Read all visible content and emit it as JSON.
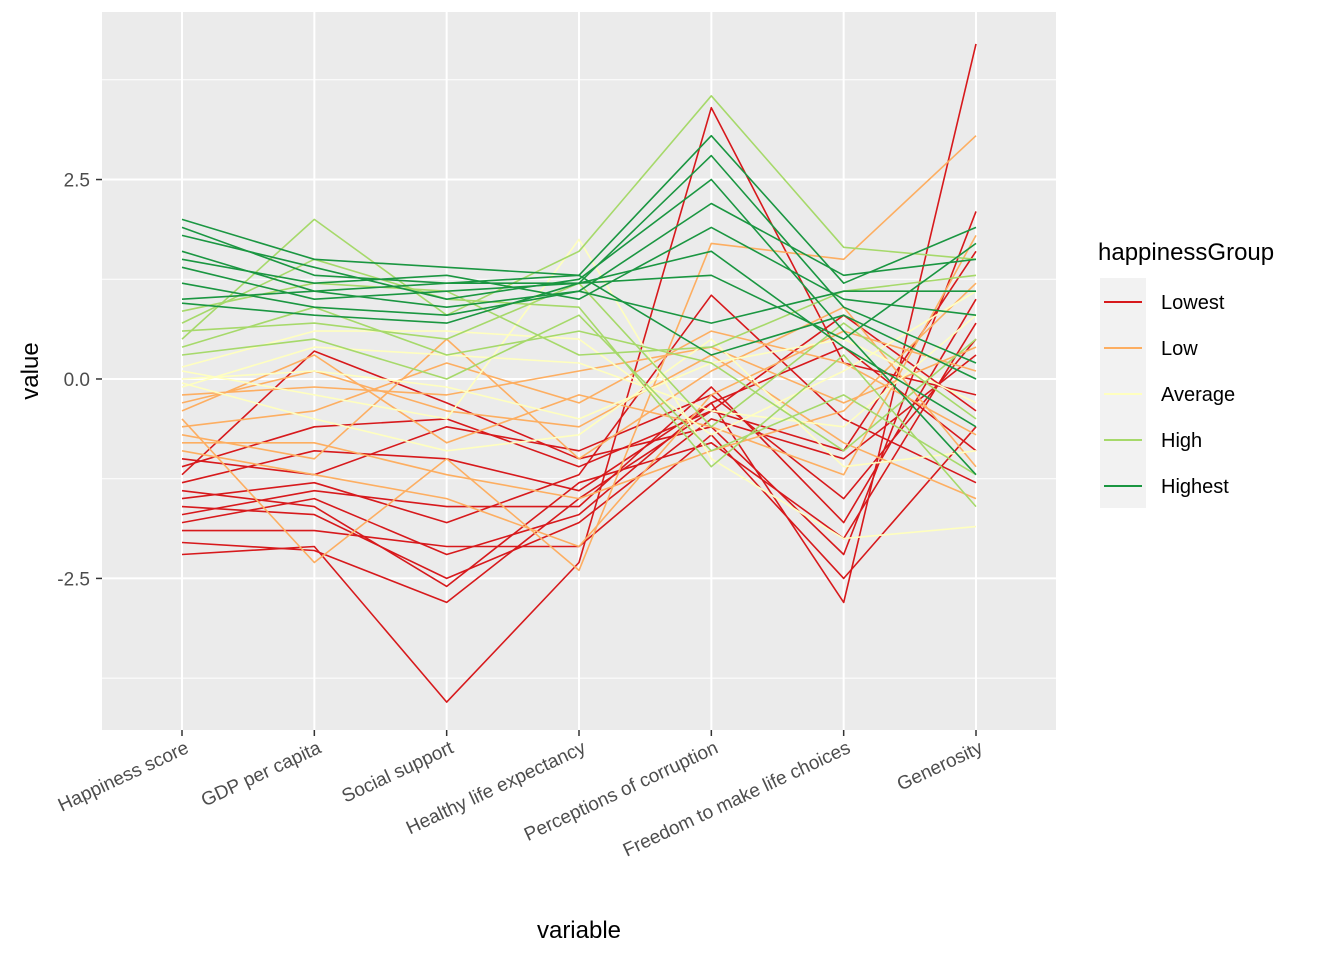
{
  "chart_data": {
    "type": "line",
    "subtype": "parallel-coordinates",
    "xlabel": "variable",
    "ylabel": "value",
    "categories": [
      "Happiness score",
      "GDP per capita",
      "Social support",
      "Healthy life expectancy",
      "Perceptions of corruption",
      "Freedom to make life choices",
      "Generosity"
    ],
    "ylim": [
      -4.4,
      4.6
    ],
    "yticks": [
      -2.5,
      0.0,
      2.5
    ],
    "ytick_labels": [
      "-2.5",
      "0.0",
      "2.5"
    ],
    "grid": true,
    "legend": {
      "title": "happinessGroup",
      "position": "right",
      "entries": [
        "Lowest",
        "Low",
        "Average",
        "High",
        "Highest"
      ]
    },
    "colors": {
      "Lowest": "#d7191c",
      "Low": "#fdae61",
      "Average": "#ffffbf",
      "High": "#a6d96a",
      "Highest": "#1a9641",
      "panel": "#ebebeb",
      "grid": "#ffffff"
    },
    "series": [
      {
        "group": "Lowest",
        "values": [
          -2.05,
          -2.15,
          -2.8,
          -1.5,
          -0.4,
          -0.9,
          1.6
        ]
      },
      {
        "group": "Lowest",
        "values": [
          -2.2,
          -2.1,
          -4.05,
          -2.3,
          3.4,
          0.2,
          -0.2
        ]
      },
      {
        "group": "Lowest",
        "values": [
          -1.8,
          -1.5,
          -2.2,
          -1.7,
          -0.3,
          -2.8,
          4.2
        ]
      },
      {
        "group": "Lowest",
        "values": [
          -1.5,
          -1.3,
          -1.8,
          -1.2,
          1.05,
          -0.5,
          -1.3
        ]
      },
      {
        "group": "Lowest",
        "values": [
          -1.2,
          0.35,
          -0.3,
          -1.0,
          -0.6,
          -2.2,
          2.1
        ]
      },
      {
        "group": "Lowest",
        "values": [
          -1.6,
          -1.7,
          -2.5,
          -1.8,
          -0.5,
          -1.0,
          0.3
        ]
      },
      {
        "group": "Lowest",
        "values": [
          -1.0,
          -1.2,
          -0.6,
          -0.9,
          -0.2,
          -1.5,
          0.5
        ]
      },
      {
        "group": "Lowest",
        "values": [
          -1.9,
          -1.9,
          -2.1,
          -2.1,
          -0.7,
          -2.5,
          -0.6
        ]
      },
      {
        "group": "Lowest",
        "values": [
          -1.3,
          -0.9,
          -1.0,
          -1.4,
          -0.3,
          0.4,
          -0.9
        ]
      },
      {
        "group": "Lowest",
        "values": [
          -1.7,
          -1.4,
          -1.6,
          -1.6,
          -0.1,
          -1.8,
          1.0
        ]
      },
      {
        "group": "Lowest",
        "values": [
          -1.1,
          -0.6,
          -0.5,
          -1.1,
          -0.4,
          0.8,
          -0.4
        ]
      },
      {
        "group": "Lowest",
        "values": [
          -1.4,
          -1.6,
          -2.6,
          -1.3,
          -0.8,
          -2.0,
          0.7
        ]
      },
      {
        "group": "Low",
        "values": [
          -0.5,
          -2.3,
          -1.0,
          -2.4,
          1.7,
          1.5,
          3.05
        ]
      },
      {
        "group": "Low",
        "values": [
          -0.8,
          -0.8,
          -1.2,
          -1.5,
          -0.9,
          -0.4,
          1.2
        ]
      },
      {
        "group": "Low",
        "values": [
          -0.3,
          0.1,
          -0.4,
          -0.6,
          0.3,
          -0.8,
          -1.5
        ]
      },
      {
        "group": "Low",
        "values": [
          -0.9,
          -1.2,
          -1.5,
          -2.1,
          -0.2,
          0.6,
          0.1
        ]
      },
      {
        "group": "Low",
        "values": [
          -0.6,
          -0.4,
          0.2,
          -0.3,
          0.6,
          0.2,
          -0.7
        ]
      },
      {
        "group": "Low",
        "values": [
          -0.4,
          0.3,
          -0.8,
          -0.2,
          -0.6,
          -1.2,
          1.8
        ]
      },
      {
        "group": "Low",
        "values": [
          -0.7,
          -1.0,
          0.5,
          -1.0,
          0.1,
          0.9,
          -1.1
        ]
      },
      {
        "group": "Low",
        "values": [
          -0.2,
          -0.1,
          -0.2,
          0.1,
          0.4,
          -0.3,
          0.4
        ]
      },
      {
        "group": "Average",
        "values": [
          0.1,
          -0.2,
          -0.5,
          1.75,
          -1.0,
          -2.0,
          -1.85
        ]
      },
      {
        "group": "Average",
        "values": [
          -0.1,
          0.4,
          0.3,
          0.2,
          -0.4,
          -0.6,
          0.8
        ]
      },
      {
        "group": "Average",
        "values": [
          0.0,
          0.1,
          -0.1,
          -0.5,
          0.2,
          0.5,
          -0.3
        ]
      },
      {
        "group": "Average",
        "values": [
          0.15,
          0.6,
          0.6,
          0.5,
          -0.7,
          0.1,
          1.1
        ]
      },
      {
        "group": "Average",
        "values": [
          -0.05,
          -0.5,
          -0.9,
          -0.7,
          0.5,
          -1.1,
          -0.9
        ]
      },
      {
        "group": "High",
        "values": [
          0.5,
          2.0,
          0.8,
          1.6,
          3.55,
          1.65,
          1.5
        ]
      },
      {
        "group": "High",
        "values": [
          0.7,
          1.5,
          1.0,
          0.9,
          -1.1,
          0.3,
          -1.6
        ]
      },
      {
        "group": "High",
        "values": [
          0.4,
          0.9,
          0.3,
          0.6,
          0.2,
          -0.9,
          0.5
        ]
      },
      {
        "group": "High",
        "values": [
          0.6,
          0.7,
          0.5,
          1.2,
          -0.6,
          0.7,
          -0.5
        ]
      },
      {
        "group": "High",
        "values": [
          0.85,
          1.2,
          1.1,
          0.3,
          0.4,
          1.1,
          1.3
        ]
      },
      {
        "group": "High",
        "values": [
          0.3,
          0.5,
          0.0,
          0.8,
          -0.9,
          -0.2,
          -1.2
        ]
      },
      {
        "group": "Highest",
        "values": [
          2.0,
          1.5,
          1.4,
          1.3,
          3.05,
          1.2,
          1.9
        ]
      },
      {
        "group": "Highest",
        "values": [
          1.9,
          1.3,
          1.2,
          1.2,
          2.8,
          0.9,
          0.2
        ]
      },
      {
        "group": "Highest",
        "values": [
          1.8,
          1.4,
          1.0,
          1.25,
          2.5,
          0.6,
          -1.2
        ]
      },
      {
        "group": "Highest",
        "values": [
          1.6,
          1.1,
          0.9,
          1.1,
          2.2,
          1.3,
          1.5
        ]
      },
      {
        "group": "Highest",
        "values": [
          1.5,
          1.2,
          1.3,
          1.0,
          1.9,
          1.0,
          0.8
        ]
      },
      {
        "group": "Highest",
        "values": [
          1.4,
          1.0,
          1.1,
          1.2,
          1.6,
          0.4,
          -0.6
        ]
      },
      {
        "group": "Highest",
        "values": [
          1.2,
          0.9,
          0.8,
          1.1,
          0.7,
          1.1,
          1.1
        ]
      },
      {
        "group": "Highest",
        "values": [
          1.0,
          1.1,
          1.2,
          1.3,
          0.3,
          0.8,
          0.0
        ]
      },
      {
        "group": "Highest",
        "values": [
          0.95,
          0.8,
          0.7,
          1.2,
          1.3,
          0.5,
          1.7
        ]
      }
    ]
  }
}
